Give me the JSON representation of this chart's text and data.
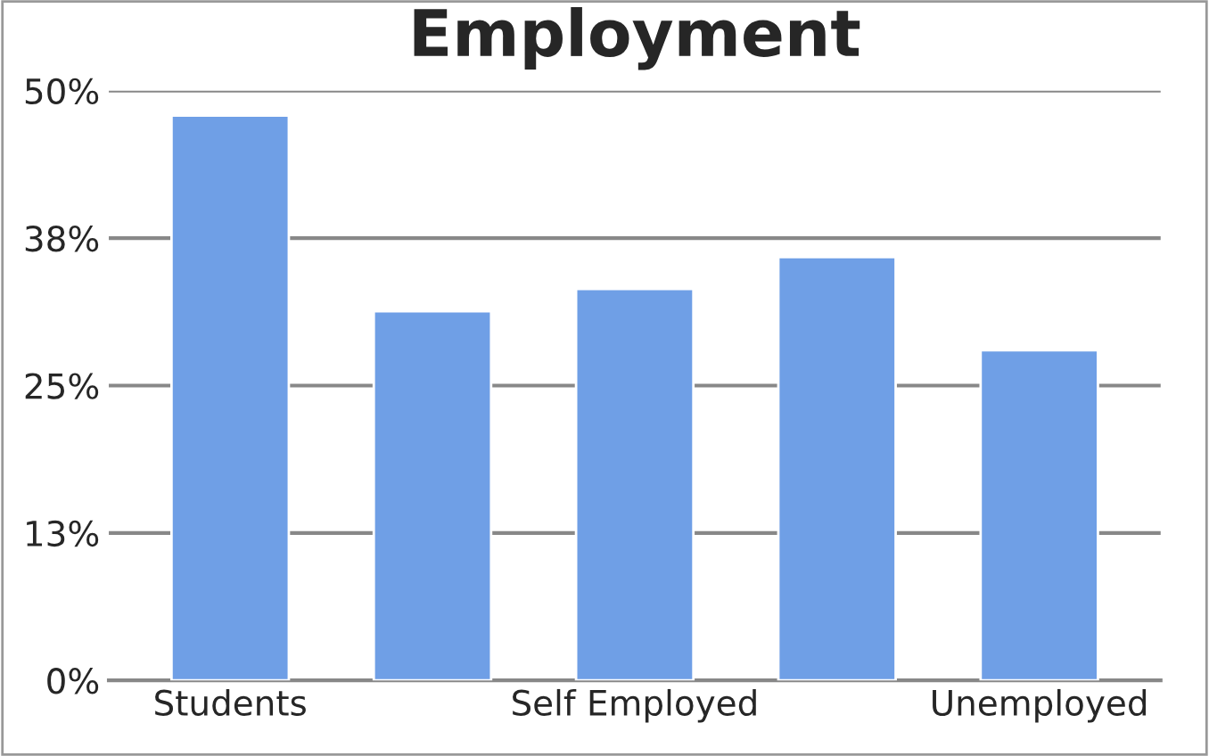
{
  "chart_data": {
    "type": "bar",
    "title": "Employment",
    "categories": [
      "Students",
      null,
      "Self Employed",
      null,
      "Unemployed"
    ],
    "values": [
      47.9,
      31.3,
      33.2,
      35.9,
      28.0
    ],
    "color": "#6f9fe6",
    "ylim": [
      0,
      50
    ],
    "yticks": [
      {
        "value": 0,
        "label": "0%"
      },
      {
        "value": 12.5,
        "label": "13%"
      },
      {
        "value": 25,
        "label": "25%"
      },
      {
        "value": 37.5,
        "label": "38%"
      },
      {
        "value": 50,
        "label": "50%"
      }
    ],
    "grid": "y"
  }
}
